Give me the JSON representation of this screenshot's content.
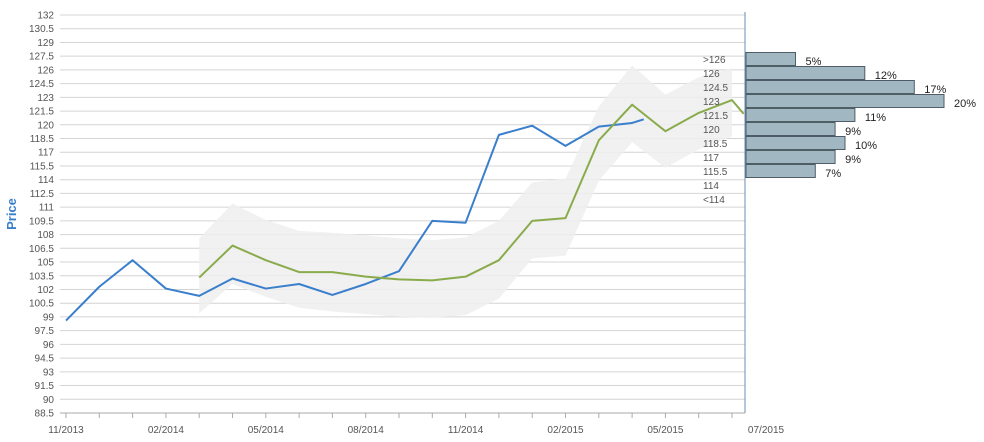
{
  "chart_data": {
    "type": "line",
    "ylabel": "Price",
    "xlabel": "",
    "ylim": [
      88.5,
      132
    ],
    "y_ticks": [
      "132",
      "130.5",
      "129",
      "127.5",
      "126",
      "124.5",
      "123",
      "121.5",
      "120",
      "118.5",
      "117",
      "115.5",
      "114",
      "112.5",
      "111",
      "109.5",
      "108",
      "106.5",
      "105",
      "103.5",
      "102",
      "100.5",
      "99",
      "97.5",
      "96",
      "94.5",
      "93",
      "91.5",
      "90",
      "88.5"
    ],
    "x_ticks": [
      "11/2013",
      "02/2014",
      "05/2014",
      "08/2014",
      "11/2014",
      "02/2015",
      "05/2015",
      "07/2015"
    ],
    "grid": true,
    "legend": "none",
    "series": [
      {
        "color": "#3a7fcc",
        "points": [
          [
            "11/2013",
            98.6
          ],
          [
            "12/2013",
            102.3
          ],
          [
            "01/2014",
            105.2
          ],
          [
            "02/2014",
            102.1
          ],
          [
            "03/2014",
            101.3
          ],
          [
            "04/2014",
            103.2
          ],
          [
            "05/2014",
            102.1
          ],
          [
            "06/2014",
            102.6
          ],
          [
            "07/2014",
            101.4
          ],
          [
            "08/2014",
            102.6
          ],
          [
            "09/2014",
            104.0
          ],
          [
            "10/2014",
            109.5
          ],
          [
            "11/2014",
            109.3
          ],
          [
            "12/2014",
            118.9
          ],
          [
            "01/2015",
            119.9
          ],
          [
            "02/2015",
            117.7
          ],
          [
            "03/2015",
            119.8
          ],
          [
            "04/2015",
            120.2
          ],
          [
            "04/2015+",
            120.6
          ]
        ]
      },
      {
        "color": "#8aab4c",
        "points": [
          [
            "03/2014",
            103.3
          ],
          [
            "04/2014",
            106.8
          ],
          [
            "05/2014",
            105.2
          ],
          [
            "06/2014",
            103.9
          ],
          [
            "07/2014",
            103.9
          ],
          [
            "08/2014",
            103.4
          ],
          [
            "09/2014",
            103.1
          ],
          [
            "10/2014",
            103.0
          ],
          [
            "11/2014",
            103.4
          ],
          [
            "12/2014",
            105.2
          ],
          [
            "01/2015",
            109.5
          ],
          [
            "02/2015",
            109.8
          ],
          [
            "03/2015",
            118.3
          ],
          [
            "04/2015",
            122.2
          ],
          [
            "05/2015",
            119.3
          ],
          [
            "06/2015",
            121.3
          ],
          [
            "07/2015",
            122.7
          ],
          [
            "07/2015+",
            121.2
          ]
        ]
      }
    ],
    "band": {
      "color": "#eeeeee",
      "upper": [
        [
          "03/2014",
          107.6
        ],
        [
          "04/2014",
          111.4
        ],
        [
          "05/2014",
          109.6
        ],
        [
          "06/2014",
          108.4
        ],
        [
          "07/2014",
          108.2
        ],
        [
          "08/2014",
          107.9
        ],
        [
          "09/2014",
          107.6
        ],
        [
          "10/2014",
          107.4
        ],
        [
          "11/2014",
          107.7
        ],
        [
          "12/2014",
          109.5
        ],
        [
          "01/2015",
          113.7
        ],
        [
          "02/2015",
          114.1
        ],
        [
          "03/2015",
          122.0
        ],
        [
          "04/2015",
          126.5
        ],
        [
          "05/2015",
          123.3
        ],
        [
          "06/2015",
          125.2
        ],
        [
          "07/2015",
          126.2
        ]
      ],
      "lower": [
        [
          "03/2014",
          99.4
        ],
        [
          "04/2014",
          102.6
        ],
        [
          "05/2014",
          101.2
        ],
        [
          "06/2014",
          100.0
        ],
        [
          "07/2014",
          99.6
        ],
        [
          "08/2014",
          99.3
        ],
        [
          "09/2014",
          99.0
        ],
        [
          "10/2014",
          98.9
        ],
        [
          "11/2014",
          99.2
        ],
        [
          "12/2014",
          101.0
        ],
        [
          "01/2015",
          105.4
        ],
        [
          "02/2015",
          105.7
        ],
        [
          "03/2015",
          113.9
        ],
        [
          "04/2015",
          118.1
        ],
        [
          "05/2015",
          115.3
        ],
        [
          "06/2015",
          117.3
        ],
        [
          "07/2015",
          118.7
        ]
      ]
    },
    "histogram": {
      "color": "#a1b7c2",
      "bins": [
        {
          "label": ">126",
          "pct": "5%",
          "value": 5
        },
        {
          "label": "126",
          "pct": "12%",
          "value": 12
        },
        {
          "label": "124.5",
          "pct": "17%",
          "value": 17
        },
        {
          "label": "123",
          "pct": "20%",
          "value": 20
        },
        {
          "label": "121.5",
          "pct": "11%",
          "value": 11
        },
        {
          "label": "120",
          "pct": "9%",
          "value": 9
        },
        {
          "label": "118.5",
          "pct": "10%",
          "value": 10
        },
        {
          "label": "117",
          "pct": "9%",
          "value": 9
        },
        {
          "label": "115.5",
          "pct": "7%",
          "value": 7
        },
        {
          "label": "114",
          "pct": "",
          "value": 0
        },
        {
          "label": "<114",
          "pct": "",
          "value": 0
        }
      ]
    }
  }
}
